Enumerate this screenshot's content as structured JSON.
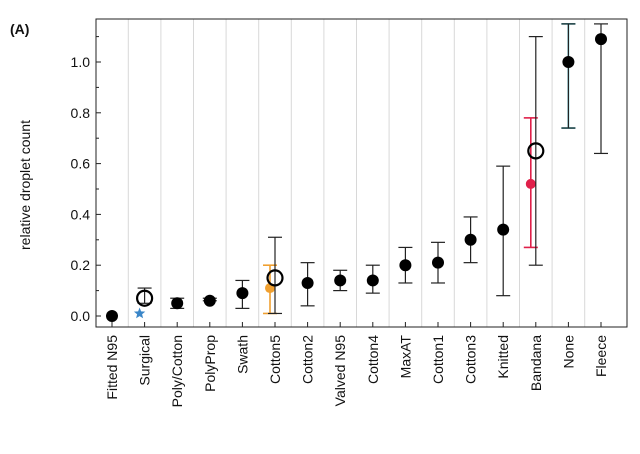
{
  "chart_data": {
    "type": "scatter",
    "panel_label": "(A)",
    "title": "",
    "xlabel": "",
    "ylabel": "relative droplet count",
    "ylim": [
      -0.02,
      1.15
    ],
    "yticks": [
      "0.0",
      "0.2",
      "0.4",
      "0.6",
      "0.8",
      "1.0"
    ],
    "grid": "vertical",
    "categories": [
      "Fitted N95",
      "Surgical",
      "Poly/Cotton",
      "PolyProp",
      "Swath",
      "Cotton5",
      "Cotton2",
      "Valved N95",
      "Cotton4",
      "MaxAT",
      "Cotton1",
      "Cotton3",
      "Knitted",
      "Bandana",
      "None",
      "Fleece"
    ],
    "series": [
      {
        "values": [
          0.0,
          0.07,
          0.05,
          0.06,
          0.09,
          0.15,
          0.13,
          0.14,
          0.14,
          0.2,
          0.21,
          0.3,
          0.34,
          0.65,
          1.0,
          1.09
        ],
        "err_low": [
          0.0,
          0.05,
          0.03,
          0.06,
          0.03,
          0.01,
          0.04,
          0.1,
          0.09,
          0.13,
          0.13,
          0.21,
          0.08,
          0.2,
          0.74,
          0.64
        ],
        "err_high": [
          0.0,
          0.11,
          0.07,
          0.07,
          0.14,
          0.31,
          0.21,
          0.18,
          0.2,
          0.27,
          0.29,
          0.39,
          0.59,
          1.1,
          1.15,
          1.15
        ],
        "open_marker_at": [
          "Surgical",
          "Cotton5",
          "Bandana"
        ],
        "color": "#000000"
      }
    ],
    "colored_points": [
      {
        "category": "Surgical",
        "value": 0.01,
        "err_low": 0.01,
        "err_high": 0.01,
        "color": "#3a86c8",
        "marker": "star"
      },
      {
        "category": "Cotton5",
        "value": 0.11,
        "err_low": 0.01,
        "err_high": 0.2,
        "color": "#f0a030",
        "marker": "dot"
      },
      {
        "category": "Bandana",
        "value": 0.52,
        "err_low": 0.27,
        "err_high": 0.78,
        "color": "#e0204a",
        "marker": "dot"
      },
      {
        "category": "None",
        "value": 1.0,
        "err_low": 0.74,
        "err_high": 1.15,
        "color": "#2ea02e",
        "errcolor": "#20a8b8",
        "marker": "dot"
      }
    ]
  }
}
